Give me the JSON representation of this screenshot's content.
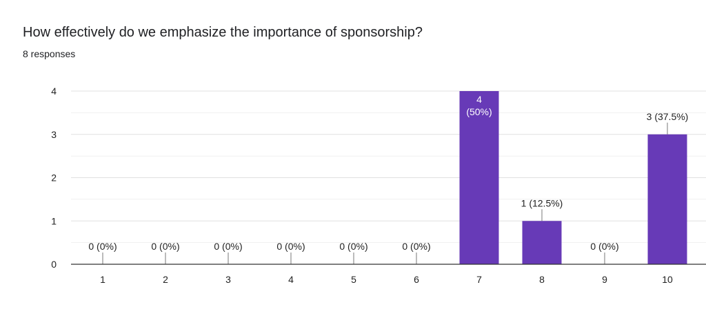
{
  "page": {
    "title": "How effectively do we emphasize the importance of sponsorship?",
    "subtitle": "8 responses"
  },
  "colors": {
    "bar": "#673ab7",
    "grid": "#e0e0e0",
    "axis": "#333333"
  },
  "chart_data": {
    "type": "bar",
    "categories": [
      "1",
      "2",
      "3",
      "4",
      "5",
      "6",
      "7",
      "8",
      "9",
      "10"
    ],
    "values": [
      0,
      0,
      0,
      0,
      0,
      0,
      4,
      1,
      0,
      3
    ],
    "data_labels": [
      "0 (0%)",
      "0 (0%)",
      "0 (0%)",
      "0 (0%)",
      "0 (0%)",
      "0 (0%)",
      "4\n(50%)",
      "1 (12.5%)",
      "0 (0%)",
      "3 (37.5%)"
    ],
    "yticks": [
      "0",
      "1",
      "2",
      "3",
      "4"
    ],
    "ylim": [
      0,
      4
    ],
    "grid": true
  }
}
